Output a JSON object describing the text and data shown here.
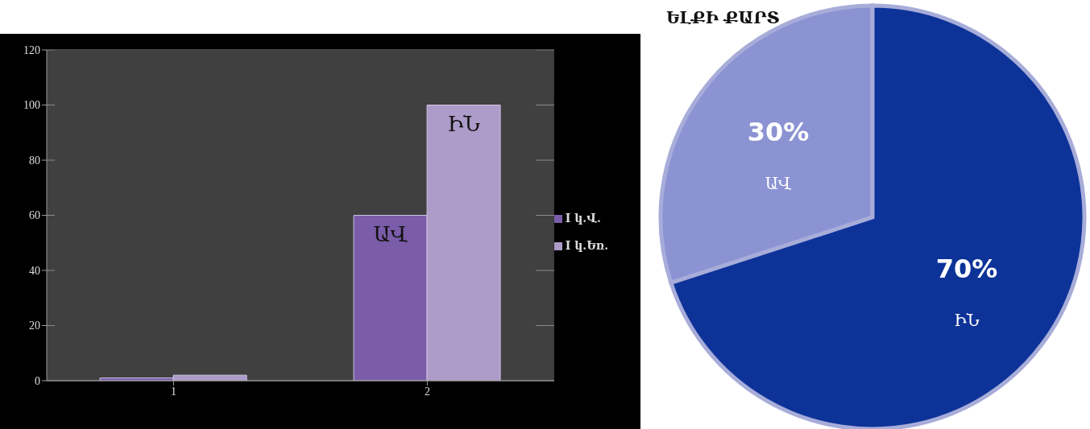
{
  "chart_data": [
    {
      "type": "bar",
      "categories": [
        "1",
        "2"
      ],
      "series": [
        {
          "name": "I կ.Վ.",
          "color": "#7a5ca8",
          "values": [
            1,
            60
          ]
        },
        {
          "name": "I կ.Եռ.",
          "color": "#ad9bc9",
          "values": [
            2,
            100
          ]
        }
      ],
      "ylim": [
        0,
        120
      ],
      "yticks": [
        0,
        20,
        40,
        60,
        80,
        100,
        120
      ],
      "grid": "y",
      "legend": "right",
      "annotations": [
        {
          "text": "ԱՎ",
          "x": "2",
          "y": 60
        },
        {
          "text": "ԻՆ",
          "x": "2",
          "y": 100
        }
      ]
    },
    {
      "type": "pie",
      "title": "ԵԼՔԻ ՔԱՐՏ",
      "categories": [
        "ԱՎ",
        "ԻՆ"
      ],
      "values": [
        30,
        70
      ],
      "colors": [
        "#8b93d3",
        "#0d3399"
      ],
      "value_labels": [
        "30%",
        "70%"
      ]
    }
  ]
}
